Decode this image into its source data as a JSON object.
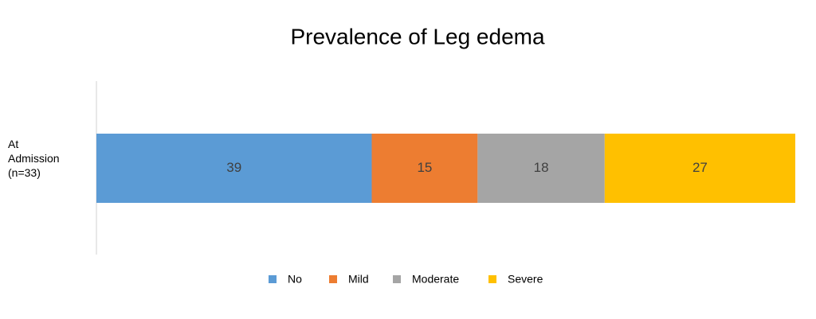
{
  "chart_data": {
    "type": "stacked_bar_horizontal",
    "title": "Prevalence of Leg edema",
    "categories": [
      "At Admission (n=33)"
    ],
    "series": [
      {
        "name": "No",
        "color": "#5b9bd5",
        "values": [
          39
        ]
      },
      {
        "name": "Mild",
        "color": "#ed7d31",
        "values": [
          15
        ]
      },
      {
        "name": "Moderate",
        "color": "#a5a5a5",
        "values": [
          18
        ]
      },
      {
        "name": "Severe",
        "color": "#ffc000",
        "values": [
          27
        ]
      }
    ],
    "legend": "bottom"
  }
}
